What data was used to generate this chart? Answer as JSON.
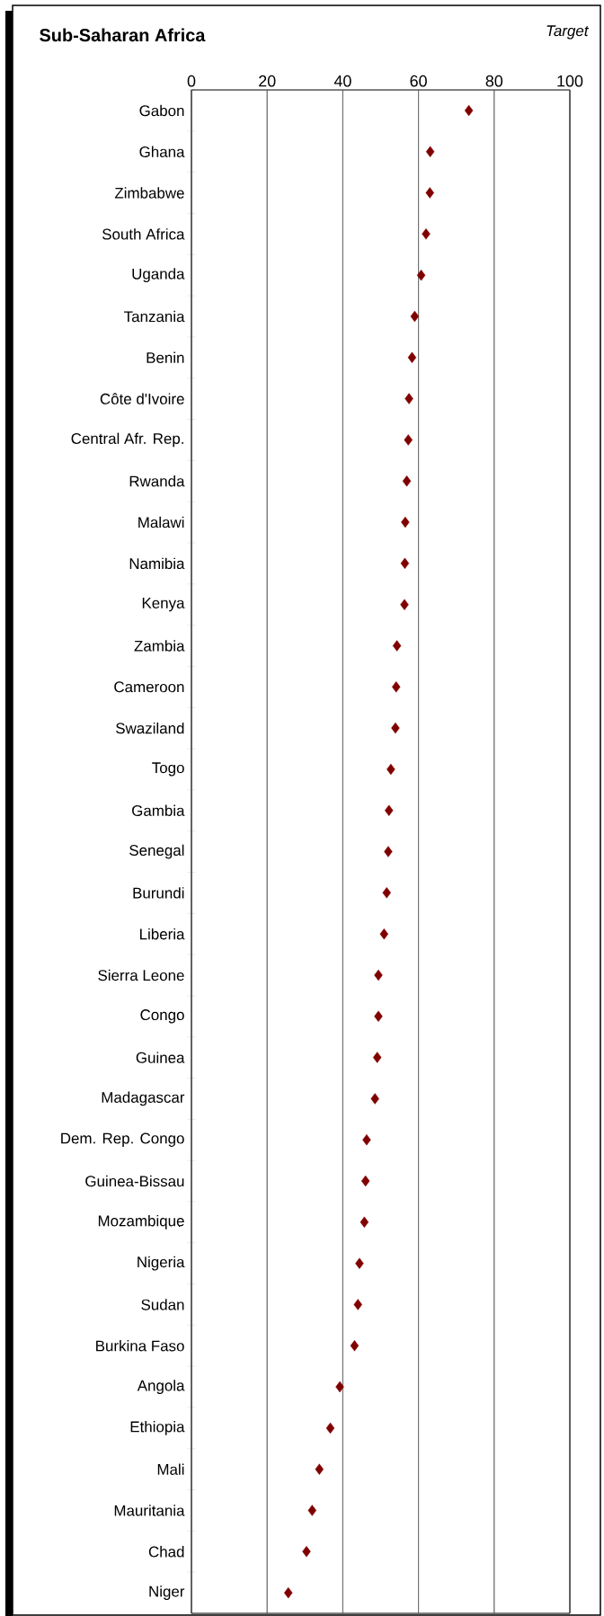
{
  "chart_data": {
    "type": "scatter",
    "title": "Sub-Saharan Africa",
    "annotations": [
      "Target"
    ],
    "orientation": "horizontal",
    "marker": "diamond",
    "grid": "x",
    "categories": [
      "Gabon",
      "Ghana",
      "Zimbabwe",
      "South Africa",
      "Uganda",
      "Tanzania",
      "Benin",
      "Côte d'Ivoire",
      "Central Afr. Rep.",
      "Rwanda",
      "Malawi",
      "Namibia",
      "Kenya",
      "Zambia",
      "Cameroon",
      "Swaziland",
      "Togo",
      "Gambia",
      "Senegal",
      "Burundi",
      "Liberia",
      "Sierra Leone",
      "Congo",
      "Guinea",
      "Madagascar",
      "Dem. Rep. Congo",
      "Guinea-Bissau",
      "Mozambique",
      "Nigeria",
      "Sudan",
      "Burkina Faso",
      "Angola",
      "Ethiopia",
      "Mali",
      "Mauritania",
      "Chad",
      "Niger"
    ],
    "values": [
      73.3,
      63.1,
      63.0,
      62.0,
      60.7,
      59.0,
      58.3,
      57.5,
      57.3,
      56.9,
      56.5,
      56.4,
      56.3,
      54.3,
      54.1,
      53.9,
      52.7,
      52.2,
      52.0,
      51.6,
      50.9,
      49.4,
      49.4,
      49.1,
      48.5,
      46.3,
      46.0,
      45.7,
      44.4,
      44.0,
      43.1,
      39.2,
      36.7,
      33.8,
      31.9,
      30.4,
      25.6
    ],
    "color": "#800000",
    "xlim": [
      0,
      100
    ],
    "xticks": [
      0,
      20,
      40,
      60,
      80,
      100
    ]
  }
}
